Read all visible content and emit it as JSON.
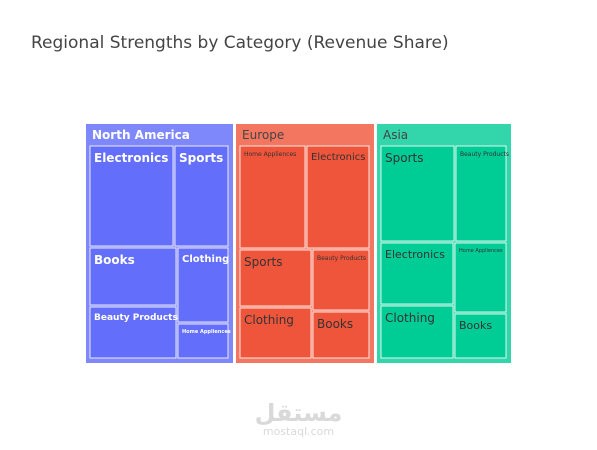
{
  "chart_data": {
    "type": "treemap",
    "title": "Regional Strengths by Category (Revenue Share)",
    "regions": [
      {
        "name": "North America",
        "color": "#636efa",
        "header_color": "#7f88fb",
        "categories": [
          "Electronics",
          "Sports",
          "Books",
          "Clothing",
          "Beauty Products",
          "Home Appliences"
        ]
      },
      {
        "name": "Europe",
        "color": "#ef553b",
        "header_color": "#f27660",
        "categories": [
          "Home Appliences",
          "Electronics",
          "Sports",
          "Beauty Products",
          "Clothing",
          "Books"
        ]
      },
      {
        "name": "Asia",
        "color": "#00cc96",
        "header_color": "#33d6ab",
        "categories": [
          "Sports",
          "Beauty Products",
          "Electronics",
          "Home Appliences",
          "Clothing",
          "Books"
        ]
      }
    ]
  },
  "watermark": {
    "logo": "مستقل",
    "sub": "mostaql.com"
  }
}
